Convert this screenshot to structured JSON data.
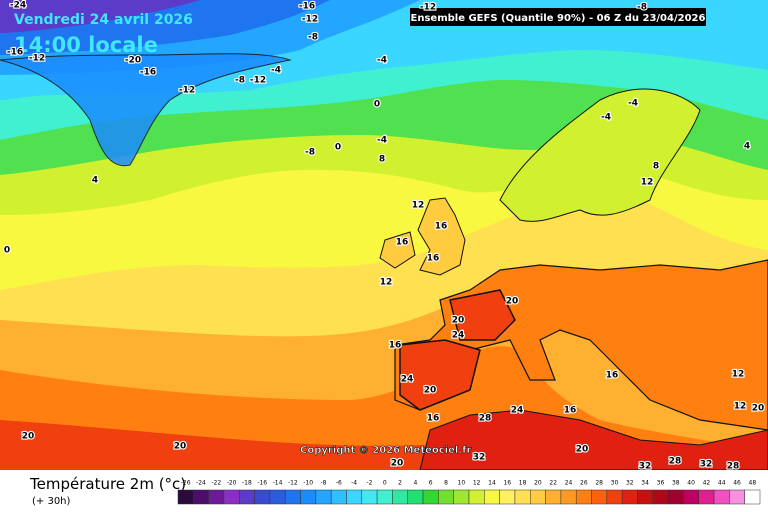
{
  "header": {
    "date": "Vendredi 24 avril 2026",
    "time": "14:00 locale",
    "model": "Ensemble GEFS  (Quantile 90%) - 06 Z du 23/04/2026"
  },
  "map": {
    "copyright": "Copyright © 2026 Meteociel.fr",
    "contour_labels": [
      -24,
      -16,
      -12,
      -8,
      -12,
      -8,
      -16,
      -12,
      -20,
      -16,
      -8,
      -12,
      -4,
      -12,
      -4,
      0,
      -4,
      -8,
      0,
      8,
      -4,
      -4,
      4,
      0,
      4,
      8,
      12,
      12,
      16,
      16,
      16,
      12,
      20,
      20,
      24,
      16,
      24,
      20,
      16,
      28,
      24,
      20,
      32,
      28,
      32,
      28,
      32,
      20,
      20,
      20,
      16,
      16,
      12,
      12,
      20
    ]
  },
  "legend": {
    "title": "Température 2m (°c)",
    "lead": "(+ 30h)",
    "ticks": [
      -26,
      -24,
      -22,
      -20,
      -18,
      -16,
      -14,
      -12,
      -10,
      -8,
      -6,
      -4,
      -2,
      0,
      2,
      4,
      6,
      8,
      10,
      12,
      14,
      16,
      18,
      20,
      22,
      24,
      26,
      28,
      30,
      32,
      34,
      36,
      38,
      40,
      42,
      44,
      46,
      48
    ],
    "colors": [
      "#2b0a3d",
      "#4b0f6b",
      "#6c1a99",
      "#8b2fc2",
      "#5b3bc8",
      "#3a4ad0",
      "#2a5ce0",
      "#1f74f0",
      "#1a8cff",
      "#22a6ff",
      "#2ec0ff",
      "#3ad6ff",
      "#40e8f0",
      "#40f0d0",
      "#30e8a0",
      "#20e070",
      "#30d830",
      "#70e030",
      "#a0e830",
      "#d0f030",
      "#f8f840",
      "#fff060",
      "#ffe050",
      "#ffcc40",
      "#ffb030",
      "#ff9a20",
      "#ff8010",
      "#ff6010",
      "#f04010",
      "#e02010",
      "#c81010",
      "#b00818",
      "#a00030",
      "#c00060",
      "#e02090",
      "#f050c0",
      "#f890e0",
      "#ffffff"
    ]
  }
}
